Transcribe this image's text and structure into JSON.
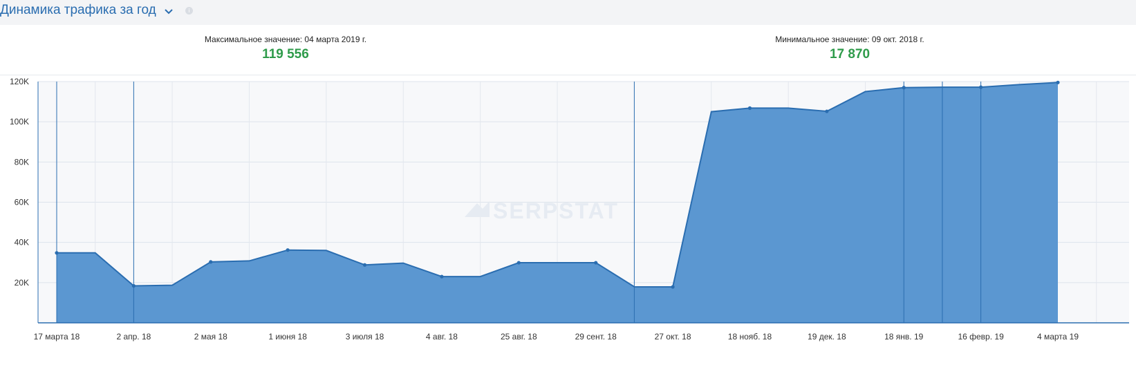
{
  "header": {
    "title": "Динамика трафика за год",
    "chevron_icon": "chevron-down-icon",
    "info_icon": "info-icon"
  },
  "stats": {
    "max_label": "Максимальное значение: 04 марта 2019 г.",
    "max_value": "119 556",
    "min_label": "Минимальное значение: 09 окт. 2018 г.",
    "min_value": "17 870"
  },
  "watermark": "SERPSTAT",
  "colors": {
    "fill": "#5b97d1",
    "line": "#2a6db0",
    "value_green": "#2e9b4a",
    "title_blue": "#2a6db0"
  },
  "chart_data": {
    "type": "area",
    "title": "",
    "xlabel": "",
    "ylabel": "",
    "ylim": [
      0,
      120000
    ],
    "y_ticks": [
      20000,
      40000,
      60000,
      80000,
      100000,
      120000
    ],
    "y_tick_labels": [
      "20K",
      "40K",
      "60K",
      "80K",
      "100K",
      "120K"
    ],
    "x_tick_labels": [
      "17 марта 18",
      "2 апр. 18",
      "2 мая 18",
      "1 июня 18",
      "3 июля 18",
      "4 авг. 18",
      "25 авг. 18",
      "29 сент. 18",
      "27 окт. 18",
      "18 нояб. 18",
      "19 дек. 18",
      "18 янв. 19",
      "16 февр. 19",
      "4 марта 19"
    ],
    "grid": true,
    "series": [
      {
        "values": [
          34800,
          34800,
          18400,
          18700,
          30300,
          30800,
          36200,
          36000,
          28800,
          29700,
          23000,
          23000,
          29900,
          29900,
          29900,
          17900,
          17870,
          105000,
          106800,
          106800,
          105200,
          115000,
          117000,
          117200,
          117200,
          118500,
          119556
        ]
      }
    ]
  }
}
